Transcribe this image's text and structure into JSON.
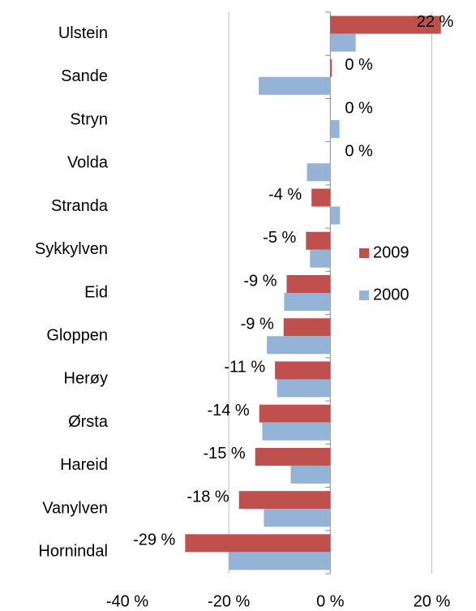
{
  "chart_data": {
    "type": "bar",
    "orientation": "horizontal",
    "categories": [
      "Ulstein",
      "Sande",
      "Stryn",
      "Volda",
      "Stranda",
      "Sykkylven",
      "Eid",
      "Gloppen",
      "Herøy",
      "Ørsta",
      "Hareid",
      "Vanylven",
      "Hornindal"
    ],
    "series": [
      {
        "name": "2009",
        "color": "#c0504d",
        "values": [
          21.8,
          0.3,
          0,
          0,
          -3.7,
          -4.8,
          -8.6,
          -9.2,
          -10.9,
          -14,
          -14.8,
          -18,
          -28.6
        ],
        "value_labels": [
          "22 %",
          "0 %",
          "0 %",
          "0 %",
          "-4 %",
          "-5 %",
          "-9 %",
          "-9 %",
          "-11 %",
          "-14 %",
          "-15 %",
          "-18 %",
          "-29 %"
        ]
      },
      {
        "name": "2000",
        "color": "#95b3d7",
        "values": [
          5,
          -14.1,
          1.8,
          -4.6,
          1.9,
          -4,
          -9.1,
          -12.5,
          -10.5,
          -13.4,
          -7.8,
          -13.1,
          -20
        ]
      }
    ],
    "xlim": [
      -40,
      22
    ],
    "xticks": [
      {
        "value": -40,
        "label": "-40 %"
      },
      {
        "value": -20,
        "label": "-20 %"
      },
      {
        "value": 0,
        "label": "0 %"
      },
      {
        "value": 20,
        "label": "20 %"
      }
    ],
    "grid": true,
    "legend": "right"
  }
}
